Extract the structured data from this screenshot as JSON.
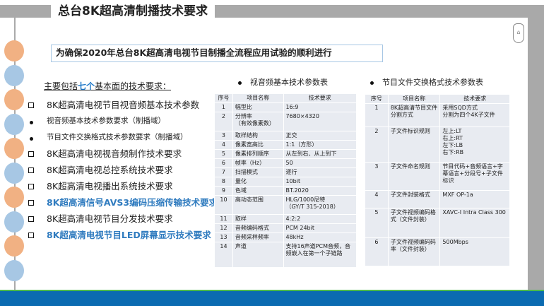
{
  "title": "总台8K超高清制播技术要求",
  "banner": "为确保2020年总台8K超高清电视节目制播全流程应用试验的顺利进行",
  "intro": {
    "pre": "主要包括",
    "highlight": "七个",
    "post": "基本面的技术要求："
  },
  "items": [
    {
      "text": "8K超高清电视节目视音频基本技术参数",
      "type": "square",
      "style": "normal"
    },
    {
      "text": "视音频基本技术参数要求（制播域）",
      "type": "dot",
      "style": "sub"
    },
    {
      "text": "节目文件交换格式技术参数要求（制播域）",
      "type": "dot",
      "style": "sub"
    },
    {
      "text": "8K超高清电视视音频制作技术要求",
      "type": "square",
      "style": "normal"
    },
    {
      "text": "8K超高清电视总控系统技术要求",
      "type": "square",
      "style": "normal"
    },
    {
      "text": "8K超高清电视播出系统技术要求",
      "type": "square",
      "style": "normal"
    },
    {
      "text": "8K超高清信号AVS3编码压缩传输技术要求",
      "type": "square",
      "style": "blue"
    },
    {
      "text": "8K超高清电视节目分发技术要求",
      "type": "square",
      "style": "normal"
    },
    {
      "text": "8K超高清电视节目LED屏幕显示技术要求",
      "type": "square",
      "style": "blue"
    }
  ],
  "table1": {
    "title": "视音频基本技术参数表",
    "headers": [
      "序号",
      "项目名称",
      "技术要求"
    ],
    "rows": [
      [
        "1",
        "幅型比",
        "16:9"
      ],
      [
        "2",
        "分辨率\n（有效像素数）",
        "7680×4320"
      ],
      [
        "3",
        "取样结构",
        "正交"
      ],
      [
        "4",
        "像素宽高比",
        "1:1（方形）"
      ],
      [
        "5",
        "像素排列顺序",
        "从左到右、从上到下"
      ],
      [
        "6",
        "帧率（Hz）",
        "50"
      ],
      [
        "7",
        "扫描模式",
        "逐行"
      ],
      [
        "8",
        "量化",
        "10bit"
      ],
      [
        "9",
        "色域",
        "BT.2020"
      ],
      [
        "10",
        "高动态范围",
        "HLG/1000尼特\n（GY/T 315-2018）"
      ],
      [
        "11",
        "取样",
        "4:2:2"
      ],
      [
        "12",
        "音频编码格式",
        "PCM 24bit"
      ],
      [
        "13",
        "音频采样频率",
        "48kHz"
      ],
      [
        "14",
        "声道",
        "支持16声道PCM音频，音频嵌入在第一个子链路"
      ]
    ]
  },
  "table2": {
    "title": "节目文件交换格式技术参数表",
    "headers": [
      "序号",
      "项目名称",
      "技术要求"
    ],
    "rows": [
      [
        "1",
        "8K超高清节目文件分割方式",
        "采用SQD方式\n分割为四个4K子文件"
      ],
      [
        "2",
        "子文件标识规则",
        "左上:LT\n右上:RT\n左下:LB\n右下:RB"
      ],
      [
        "3",
        "子文件命名规则",
        "节目代码+音频语言+字幕语言+分段号+子文件标识"
      ],
      [
        "4",
        "子文件封装格式",
        "MXF OP-1a"
      ],
      [
        "5",
        "子文件视频编码格式（文件封装）",
        "XAVC-I Intra Class 300"
      ],
      [
        "6",
        "子文件视频编码码率（文件封装）",
        "500Mbps"
      ]
    ]
  },
  "colors": {
    "accent_blue": "#2f7bbf",
    "circle_orange": "#f1b183",
    "circle_blue": "#a7c7e4",
    "footer_blue": "#0b6bb1",
    "footer_green": "#4cba4c"
  }
}
